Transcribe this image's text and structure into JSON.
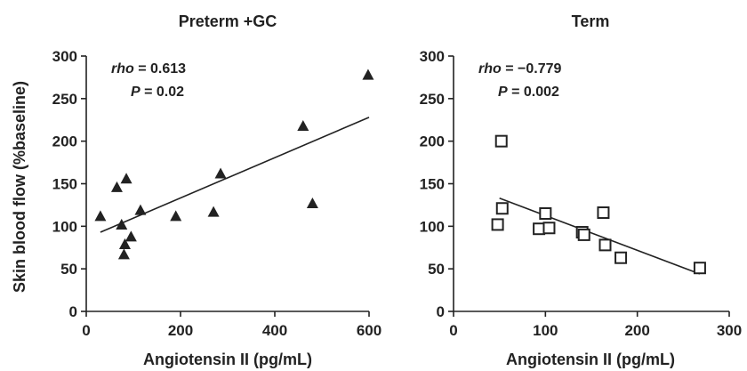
{
  "y_axis_label": "Skin blood flow (%baseline)",
  "chart_data": [
    {
      "type": "scatter",
      "title": "Preterm +GC",
      "xlabel": "Angiotensin II (pg/mL)",
      "ylabel": "Skin blood flow (%baseline)",
      "xlim": [
        0,
        600
      ],
      "ylim": [
        0,
        300
      ],
      "xticks": [
        "0",
        "200",
        "400",
        "600"
      ],
      "yticks": [
        "0",
        "50",
        "100",
        "150",
        "200",
        "250",
        "300"
      ],
      "marker": "filled-triangle",
      "color": "#222222",
      "stats": {
        "rho_label": "rho",
        "rho_value": " = 0.613",
        "p_label": "P",
        "p_value": " = 0.02"
      },
      "points": [
        {
          "x": 30,
          "y": 112
        },
        {
          "x": 65,
          "y": 146
        },
        {
          "x": 75,
          "y": 102
        },
        {
          "x": 80,
          "y": 67
        },
        {
          "x": 82,
          "y": 79
        },
        {
          "x": 85,
          "y": 156
        },
        {
          "x": 95,
          "y": 88
        },
        {
          "x": 115,
          "y": 119
        },
        {
          "x": 190,
          "y": 112
        },
        {
          "x": 270,
          "y": 117
        },
        {
          "x": 285,
          "y": 162
        },
        {
          "x": 460,
          "y": 218
        },
        {
          "x": 480,
          "y": 127
        },
        {
          "x": 598,
          "y": 278
        }
      ],
      "trendline": {
        "x": [
          30,
          600
        ],
        "y": [
          93,
          228
        ]
      }
    },
    {
      "type": "scatter",
      "title": "Term",
      "xlabel": "Angiotensin II (pg/mL)",
      "ylabel": "",
      "xlim": [
        0,
        300
      ],
      "ylim": [
        0,
        300
      ],
      "xticks": [
        "0",
        "100",
        "200",
        "300"
      ],
      "yticks": [
        "0",
        "50",
        "100",
        "150",
        "200",
        "250",
        "300"
      ],
      "marker": "open-square",
      "color": "#222222",
      "stats": {
        "rho_label": "rho",
        "rho_value": " = −0.779",
        "p_label": "P",
        "p_value": " = 0.002"
      },
      "points": [
        {
          "x": 48,
          "y": 102
        },
        {
          "x": 52,
          "y": 200
        },
        {
          "x": 53,
          "y": 121
        },
        {
          "x": 93,
          "y": 97
        },
        {
          "x": 100,
          "y": 115
        },
        {
          "x": 104,
          "y": 98
        },
        {
          "x": 140,
          "y": 93
        },
        {
          "x": 142,
          "y": 90
        },
        {
          "x": 163,
          "y": 116
        },
        {
          "x": 165,
          "y": 78
        },
        {
          "x": 182,
          "y": 63
        },
        {
          "x": 268,
          "y": 51
        }
      ],
      "trendline": {
        "x": [
          50,
          268
        ],
        "y": [
          133,
          44
        ]
      }
    }
  ]
}
